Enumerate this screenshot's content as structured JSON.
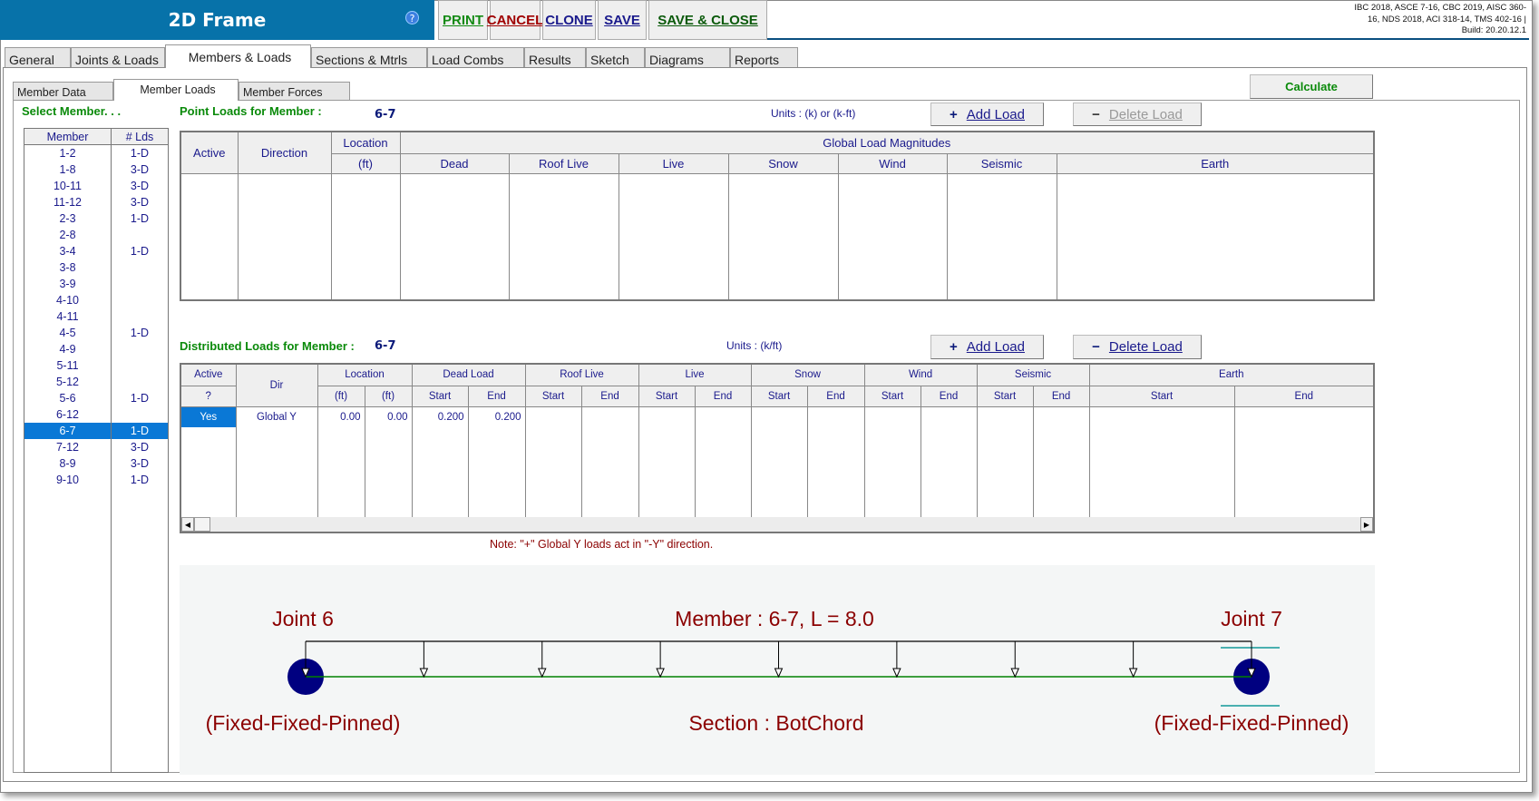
{
  "header": {
    "title": "2D Frame",
    "help_icon": "question-circle-icon",
    "buttons": [
      {
        "label": "PRINT",
        "color": "#138a13"
      },
      {
        "label": "CANCEL",
        "color": "#a00000"
      },
      {
        "label": "CLONE",
        "color": "#1a1a8c"
      },
      {
        "label": "SAVE",
        "color": "#1a1a8c"
      },
      {
        "label": "SAVE & CLOSE",
        "color": "#0b5a0b"
      }
    ],
    "codes_line1": "IBC 2018, ASCE 7-16, CBC 2019, AISC 360-",
    "codes_line2": "16, NDS 2018, ACI 318-14, TMS 402-16 |",
    "build": "Build: 20.20.12.1"
  },
  "tabs": [
    "General",
    "Joints & Loads",
    "Members & Loads",
    "Sections & Mtrls",
    "Load Combs",
    "Results",
    "Sketch",
    "Diagrams",
    "Reports"
  ],
  "active_tab": "Members & Loads",
  "subtabs": [
    "Member Data",
    "Member Loads",
    "Member Forces"
  ],
  "active_subtab": "Member Loads",
  "calculate_label": "Calculate",
  "select_member": {
    "label": "Select Member. . .",
    "headers": [
      "Member",
      "# Lds"
    ],
    "rows": [
      [
        "1-2",
        "1-D"
      ],
      [
        "1-8",
        "3-D"
      ],
      [
        "10-11",
        "3-D"
      ],
      [
        "11-12",
        "3-D"
      ],
      [
        "2-3",
        "1-D"
      ],
      [
        "2-8",
        ""
      ],
      [
        "3-4",
        "1-D"
      ],
      [
        "3-8",
        ""
      ],
      [
        "3-9",
        ""
      ],
      [
        "4-10",
        ""
      ],
      [
        "4-11",
        ""
      ],
      [
        "4-5",
        "1-D"
      ],
      [
        "4-9",
        ""
      ],
      [
        "5-11",
        ""
      ],
      [
        "5-12",
        ""
      ],
      [
        "5-6",
        "1-D"
      ],
      [
        "6-12",
        ""
      ],
      [
        "6-7",
        "1-D"
      ],
      [
        "7-12",
        "3-D"
      ],
      [
        "8-9",
        "3-D"
      ],
      [
        "9-10",
        "1-D"
      ]
    ],
    "selected": "6-7"
  },
  "point_loads": {
    "label": "Point Loads for Member :",
    "member": "6-7",
    "units": "Units : (k) or (k-ft)",
    "add_label": "Add Load",
    "delete_label": "Delete Load",
    "headers": {
      "active": "Active",
      "direction": "Direction",
      "location": "Location",
      "location_unit": "(ft)",
      "group": "Global Load Magnitudes",
      "cols": [
        "Dead",
        "Roof Live",
        "Live",
        "Snow",
        "Wind",
        "Seismic",
        "Earth"
      ]
    },
    "rows": []
  },
  "distributed_loads": {
    "label": "Distributed Loads for Member :",
    "member": "6-7",
    "units": "Units : (k/ft)",
    "add_label": "Add Load",
    "delete_label": "Delete Load",
    "headers": {
      "active": "Active",
      "active_sub": "?",
      "dir": "Dir",
      "location": "Location",
      "loc_units": [
        "(ft)",
        "(ft)"
      ],
      "groups": [
        "Dead Load",
        "Roof Live",
        "Live",
        "Snow",
        "Wind",
        "Seismic",
        "Earth"
      ],
      "start": "Start",
      "end": "End"
    },
    "rows": [
      {
        "active": "Yes",
        "dir": "Global Y",
        "loc_start": "0.00",
        "loc_end": "0.00",
        "dead_start": "0.200",
        "dead_end": "0.200"
      }
    ],
    "note": "Note: \"+\" Global Y loads act in \"-Y\" direction."
  },
  "diagram": {
    "joint_start": "Joint 6",
    "joint_end": "Joint 7",
    "member_text": "Member : 6-7, L = 8.0",
    "section_text": "Section : BotChord",
    "start_fixity": "(Fixed-Fixed-Pinned)",
    "end_fixity": "(Fixed-Fixed-Pinned)",
    "joint_color": "#000080",
    "member_color": "#008000",
    "text_color": "#8b0000"
  }
}
